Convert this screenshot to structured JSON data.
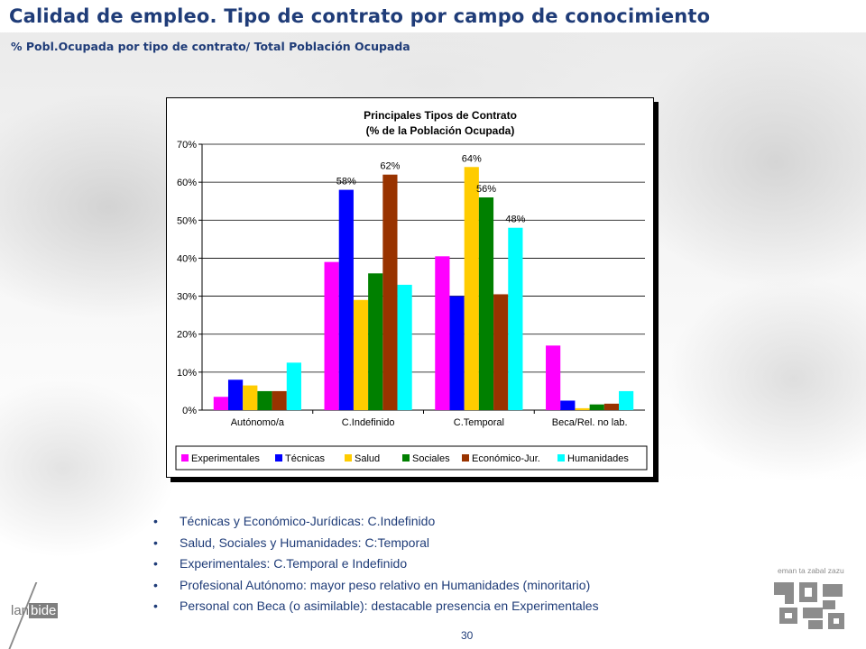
{
  "header": {
    "title": "Calidad de empleo. Tipo de contrato por campo de conocimiento",
    "subtitle": "% Pobl.Ocupada por tipo de contrato/ Total Población Ocupada"
  },
  "chart_data": {
    "type": "bar",
    "title": "Principales Tipos de Contrato",
    "subtitle": "(% de la Población Ocupada)",
    "categories": [
      "Autónomo/a",
      "C.Indefinido",
      "C.Temporal",
      "Beca/Rel. no lab."
    ],
    "ylim": [
      0,
      70
    ],
    "yticks": [
      "0%",
      "10%",
      "20%",
      "30%",
      "40%",
      "50%",
      "60%",
      "70%"
    ],
    "grid": true,
    "legend_position": "bottom",
    "series": [
      {
        "name": "Experimentales",
        "color": "#ff00ff",
        "values": [
          3.5,
          39,
          40.5,
          17
        ]
      },
      {
        "name": "Técnicas",
        "color": "#0000ff",
        "values": [
          8,
          58,
          30,
          2.5
        ]
      },
      {
        "name": "Salud",
        "color": "#ffcc00",
        "values": [
          6.5,
          29,
          64,
          0.5
        ]
      },
      {
        "name": "Sociales",
        "color": "#008000",
        "values": [
          5,
          36,
          56,
          1.5
        ]
      },
      {
        "name": "Económico-Jur.",
        "color": "#993300",
        "values": [
          5,
          62,
          30.5,
          1.7
        ]
      },
      {
        "name": "Humanidades",
        "color": "#00ffff",
        "values": [
          12.5,
          33,
          48,
          5
        ]
      }
    ],
    "data_labels": [
      {
        "category": 1,
        "series": 1,
        "text": "58%"
      },
      {
        "category": 1,
        "series": 4,
        "text": "62%"
      },
      {
        "category": 2,
        "series": 2,
        "text": "64%"
      },
      {
        "category": 2,
        "series": 3,
        "text": "56%"
      },
      {
        "category": 2,
        "series": 5,
        "text": "48%"
      }
    ]
  },
  "bullets": [
    "Técnicas y Económico-Jurídicas:  C.Indefinido",
    "Salud, Sociales y Humanidades: C:Temporal",
    "Experimentales: C.Temporal e Indefinido",
    "Profesional Autónomo: mayor peso relativo en Humanidades (minoritario)",
    "Personal con Beca (o asimilable): destacable presencia en Experimentales"
  ],
  "footer": {
    "logo_lan": "lan",
    "logo_bide": "bide",
    "page_number": "30",
    "gov_motto": "eman ta zabal zazu"
  }
}
